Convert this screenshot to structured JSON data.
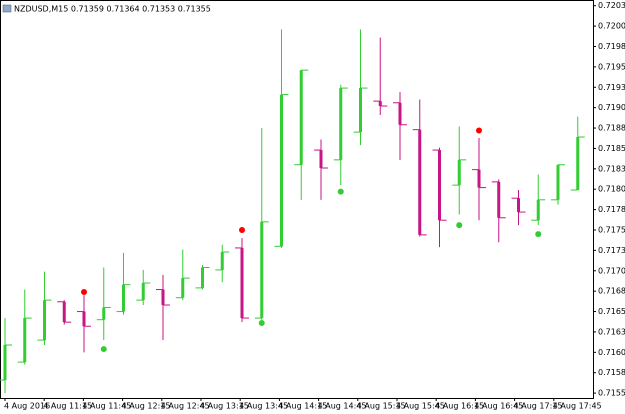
{
  "chart_data": {
    "type": "candlestick",
    "title": "NZDUSD,M15  0.71359 0.71364 0.71353 0.71355",
    "open": [
      0.71571,
      0.71593,
      0.7162,
      0.71667,
      0.71655,
      0.71645,
      0.71655,
      0.71669,
      0.71682,
      0.71672,
      0.71684,
      0.71706,
      0.71733,
      0.71647,
      0.71735,
      0.71835,
      0.71853,
      0.71841,
      0.71875,
      0.71913,
      0.71911,
      0.71878,
      0.71853,
      0.7181,
      0.71829,
      0.71814,
      0.71794,
      0.71767,
      0.71792,
      0.71804
    ],
    "high": [
      0.71647,
      0.71682,
      0.71704,
      0.71669,
      0.71675,
      0.71709,
      0.71727,
      0.71706,
      0.717,
      0.71731,
      0.71712,
      0.71737,
      0.71745,
      0.7188,
      0.72001,
      0.71949,
      0.71866,
      0.71933,
      0.72001,
      0.71991,
      0.71924,
      0.71915,
      0.71856,
      0.71882,
      0.71868,
      0.71817,
      0.71804,
      0.71823,
      0.71835,
      0.71894
    ],
    "low": [
      0.71555,
      0.7159,
      0.71614,
      0.71639,
      0.71605,
      0.7162,
      0.71651,
      0.71663,
      0.7162,
      0.71669,
      0.71682,
      0.71691,
      0.71642,
      0.71645,
      0.71733,
      0.71792,
      0.71792,
      0.7181,
      0.71859,
      0.71896,
      0.71841,
      0.71747,
      0.71734,
      0.71774,
      0.71767,
      0.7174,
      0.71761,
      0.71761,
      0.71786,
      0.71804
    ],
    "close": [
      0.71614,
      0.71647,
      0.71669,
      0.71642,
      0.71637,
      0.7166,
      0.71688,
      0.7169,
      0.71663,
      0.71696,
      0.71709,
      0.71728,
      0.71647,
      0.71765,
      0.71921,
      0.71951,
      0.71831,
      0.71929,
      0.71929,
      0.71907,
      0.71884,
      0.71749,
      0.71767,
      0.71841,
      0.71807,
      0.7177,
      0.71777,
      0.71792,
      0.71835,
      0.71869
    ],
    "up_color": "#32cd32",
    "down_color": "#c71585",
    "up_markers": [
      null,
      null,
      null,
      null,
      0.71679,
      null,
      null,
      null,
      null,
      null,
      null,
      null,
      0.71755,
      null,
      null,
      null,
      null,
      null,
      null,
      null,
      null,
      null,
      null,
      null,
      0.71877,
      null,
      null,
      null,
      null,
      null
    ],
    "up_marker_color": "#ff0000",
    "down_markers": [
      null,
      null,
      null,
      null,
      null,
      0.71609,
      null,
      null,
      null,
      null,
      null,
      null,
      null,
      0.71641,
      null,
      null,
      null,
      0.71802,
      null,
      null,
      null,
      null,
      null,
      0.71761,
      null,
      null,
      null,
      0.7175,
      null,
      null
    ],
    "down_marker_color": "#32cd32",
    "x_labels": [
      "4 Aug 2016",
      "4 Aug 11:15",
      "4 Aug 11:45",
      "4 Aug 12:15",
      "4 Aug 12:45",
      "4 Aug 13:15",
      "4 Aug 13:45",
      "4 Aug 14:15",
      "4 Aug 14:45",
      "4 Aug 15:15",
      "4 Aug 15:45",
      "4 Aug 16:15",
      "4 Aug 16:45",
      "4 Aug 17:15",
      "4 Aug 17:45"
    ],
    "ylim": [
      0.71549,
      0.72037
    ],
    "yticks": [
      {
        "value": 0.7203,
        "label": "0.72030"
      },
      {
        "value": 0.72005,
        "label": "0.72005"
      },
      {
        "value": 0.7198,
        "label": "0.71980"
      },
      {
        "value": 0.71955,
        "label": "0.71955"
      },
      {
        "value": 0.7193,
        "label": "0.71930"
      },
      {
        "value": 0.71905,
        "label": "0.71905"
      },
      {
        "value": 0.7188,
        "label": "0.71880"
      },
      {
        "value": 0.71855,
        "label": "0.71855"
      },
      {
        "value": 0.7183,
        "label": "0.71830"
      },
      {
        "value": 0.71805,
        "label": "0.71805"
      },
      {
        "value": 0.7178,
        "label": "0.71780"
      },
      {
        "value": 0.71755,
        "label": "0.71755"
      },
      {
        "value": 0.7173,
        "label": "0.71730"
      },
      {
        "value": 0.71705,
        "label": "0.71705"
      },
      {
        "value": 0.7168,
        "label": "0.71680"
      },
      {
        "value": 0.71655,
        "label": "0.71655"
      },
      {
        "value": 0.7163,
        "label": "0.71630"
      },
      {
        "value": 0.71605,
        "label": "0.71605"
      },
      {
        "value": 0.7158,
        "label": "0.71580"
      },
      {
        "value": 0.71555,
        "label": "0.71555"
      }
    ]
  }
}
